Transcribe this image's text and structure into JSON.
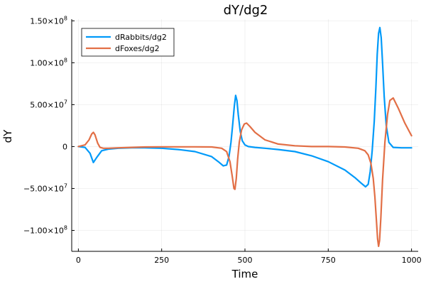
{
  "chart_data": {
    "type": "line",
    "title": "dY/dg2",
    "xlabel": "Time",
    "ylabel": "dY",
    "xlim": [
      -20,
      1020
    ],
    "ylim": [
      -125000000,
      152000000
    ],
    "grid": true,
    "legend_placement": "top-left",
    "x_ticks": [
      {
        "value": 0,
        "label": "0"
      },
      {
        "value": 250,
        "label": "250"
      },
      {
        "value": 500,
        "label": "500"
      },
      {
        "value": 750,
        "label": "750"
      },
      {
        "value": 1000,
        "label": "1000"
      }
    ],
    "y_ticks": [
      {
        "value": 150000000,
        "mantissa": "1.50×10",
        "exp": "8"
      },
      {
        "value": 100000000,
        "mantissa": "1.00×10",
        "exp": "8"
      },
      {
        "value": 50000000,
        "mantissa": "5.00×10",
        "exp": "7"
      },
      {
        "value": 0,
        "mantissa": "0",
        "exp": ""
      },
      {
        "value": -50000000,
        "mantissa": "−5.00×10",
        "exp": "7"
      },
      {
        "value": -100000000,
        "mantissa": "−1.00×10",
        "exp": "8"
      }
    ],
    "series": [
      {
        "name": "dRabbits/dg2",
        "color": "#009af9",
        "x": [
          0,
          20,
          35,
          45,
          55,
          70,
          90,
          120,
          160,
          200,
          250,
          300,
          350,
          400,
          420,
          435,
          445,
          452,
          458,
          463,
          468,
          472,
          476,
          480,
          486,
          492,
          500,
          510,
          530,
          560,
          600,
          650,
          700,
          750,
          800,
          830,
          850,
          862,
          870,
          876,
          882,
          888,
          893,
          897,
          901,
          905,
          909,
          913,
          918,
          924,
          932,
          945,
          970,
          1000
        ],
        "y": [
          0,
          -1000000,
          -8000000,
          -19000000,
          -13000000,
          -5000000,
          -3000000,
          -2000000,
          -1500000,
          -1500000,
          -2000000,
          -3500000,
          -6000000,
          -12000000,
          -18000000,
          -23000000,
          -22000000,
          -12000000,
          5000000,
          25000000,
          48000000,
          61000000,
          55000000,
          38000000,
          18000000,
          7000000,
          2000000,
          0,
          -1000000,
          -2000000,
          -3500000,
          -6000000,
          -11000000,
          -18000000,
          -28000000,
          -37000000,
          -44000000,
          -48000000,
          -45000000,
          -30000000,
          -5000000,
          30000000,
          70000000,
          110000000,
          135000000,
          142000000,
          130000000,
          100000000,
          60000000,
          25000000,
          5000000,
          -1000000,
          -1500000,
          -1500000
        ]
      },
      {
        "name": "dFoxes/dg2",
        "color": "#e26f46",
        "x": [
          0,
          20,
          32,
          40,
          45,
          50,
          58,
          65,
          75,
          90,
          120,
          160,
          200,
          250,
          300,
          350,
          400,
          430,
          445,
          455,
          462,
          467,
          470,
          474,
          478,
          483,
          490,
          498,
          505,
          515,
          530,
          560,
          600,
          650,
          700,
          750,
          800,
          840,
          860,
          870,
          878,
          885,
          890,
          895,
          898,
          901,
          904,
          908,
          913,
          920,
          928,
          935,
          945,
          960,
          980,
          1000
        ],
        "y": [
          0,
          2000000,
          8000000,
          15000000,
          17000000,
          14000000,
          4000000,
          -1000000,
          -2000000,
          -2000000,
          -1500000,
          -1000000,
          -500000,
          -300000,
          -300000,
          -300000,
          -500000,
          -2000000,
          -6000000,
          -18000000,
          -36000000,
          -50000000,
          -51000000,
          -38000000,
          -15000000,
          5000000,
          20000000,
          27000000,
          28000000,
          24000000,
          17000000,
          8000000,
          3000000,
          1000000,
          0,
          0,
          -500000,
          -2000000,
          -5000000,
          -10000000,
          -20000000,
          -38000000,
          -60000000,
          -90000000,
          -110000000,
          -119000000,
          -112000000,
          -85000000,
          -40000000,
          5000000,
          38000000,
          55000000,
          58000000,
          46000000,
          28000000,
          13000000
        ]
      }
    ]
  }
}
